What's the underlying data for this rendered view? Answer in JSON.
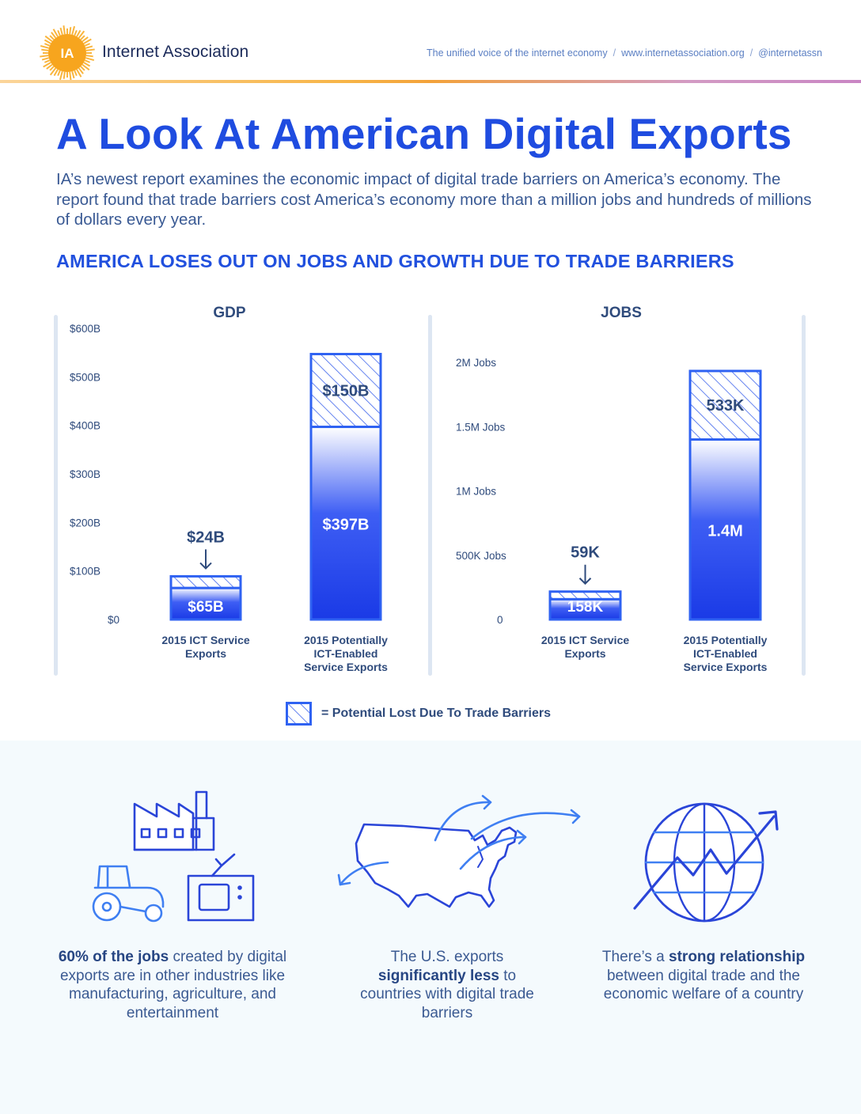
{
  "header": {
    "logo_text": "IA",
    "org_name": "Internet Association",
    "tagline": "The unified voice of the internet economy",
    "website": "www.internetassociation.org",
    "handle": "@internetassn",
    "separator": "/"
  },
  "title": "A Look At American Digital Exports",
  "intro": "IA’s newest report examines the economic impact of digital trade barriers on America’s economy. The report found that trade barriers cost America’s economy more than a million jobs and hundreds of millions of dollars every year.",
  "section_heading": "AMERICA LOSES OUT ON JOBS AND GROWTH DUE TO TRADE BARRIERS",
  "colors": {
    "bar_top": "#3e5ef4",
    "bar_bottom": "#1a3ae6",
    "bar_light": "#ffffff",
    "hatch": "#3f65ec",
    "outline": "#2f62f2",
    "title_blue": "#1f4ce0",
    "panel_bg": "#f4fafd"
  },
  "chart_data": [
    {
      "type": "bar",
      "stacked": true,
      "title": "GDP",
      "categories": [
        "2015 ICT Service Exports",
        "2015 Potentially ICT-Enabled Service Exports"
      ],
      "series": [
        {
          "values": [
            65,
            397
          ],
          "labels": [
            "$65B",
            "$397B"
          ],
          "style": "solid"
        },
        {
          "name": "Potential Lost Due To Trade Barriers",
          "values": [
            24,
            150
          ],
          "labels": [
            "$24B",
            "$150B"
          ],
          "style": "hatched"
        }
      ],
      "ylim": [
        0,
        600
      ],
      "yticks": [
        0,
        100,
        200,
        300,
        400,
        500,
        600
      ],
      "ytick_labels": [
        "$0",
        "$100B",
        "$200B",
        "$300B",
        "$400B",
        "$500B",
        "$600B"
      ],
      "grid": false
    },
    {
      "type": "bar",
      "stacked": true,
      "title": "JOBS",
      "categories": [
        "2015 ICT Service Exports",
        "2015 Potentially ICT-Enabled Service Exports"
      ],
      "series": [
        {
          "values": [
            158000,
            1400000
          ],
          "labels": [
            "158K",
            "1.4M"
          ],
          "style": "solid"
        },
        {
          "name": "Potential Lost Due To Trade Barriers",
          "values": [
            59000,
            533000
          ],
          "labels": [
            "59K",
            "533K"
          ],
          "style": "hatched"
        }
      ],
      "ylim": [
        0,
        2000000
      ],
      "yticks": [
        0,
        500000,
        1000000,
        1500000,
        2000000
      ],
      "ytick_labels": [
        "0",
        "500K Jobs",
        "1M Jobs",
        "1.5M Jobs",
        "2M Jobs"
      ],
      "grid": false
    }
  ],
  "category_label_lines": [
    [
      "2015 ICT Service",
      "Exports"
    ],
    [
      "2015 Potentially",
      "ICT-Enabled",
      "Service Exports"
    ]
  ],
  "legend": {
    "text": "= Potential Lost Due To Trade Barriers"
  },
  "facts": [
    {
      "icon": "industries-icon",
      "text_parts": [
        {
          "text": "60% of the jobs",
          "bold": true
        },
        {
          "text": " created by digital exports are in other industries like manufacturing, agriculture, and entertainment",
          "bold": false
        }
      ]
    },
    {
      "icon": "us-map-exports-icon",
      "text_parts": [
        {
          "text": "The U.S. exports ",
          "bold": false
        },
        {
          "text": "significantly less",
          "bold": true
        },
        {
          "text": " to countries with digital trade barriers",
          "bold": false
        }
      ]
    },
    {
      "icon": "globe-growth-icon",
      "text_parts": [
        {
          "text": "There’s a ",
          "bold": false
        },
        {
          "text": "strong relationship",
          "bold": true
        },
        {
          "text": " between digital trade and the economic welfare of a country",
          "bold": false
        }
      ]
    }
  ]
}
